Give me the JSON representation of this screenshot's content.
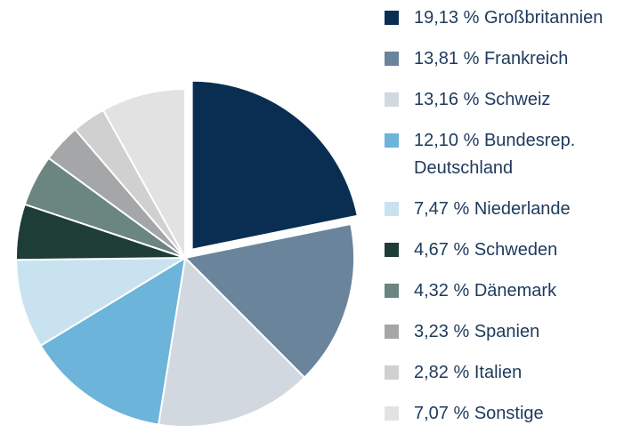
{
  "chart_data": {
    "type": "pie",
    "categories": [
      "Großbritannien",
      "Frankreich",
      "Schweiz",
      "Bundesrep. Deutschland",
      "Niederlande",
      "Schweden",
      "Dänemark",
      "Spanien",
      "Italien",
      "Sonstige"
    ],
    "values": [
      19.13,
      13.81,
      13.16,
      12.1,
      7.47,
      4.67,
      4.32,
      3.23,
      2.82,
      7.07
    ],
    "value_labels": [
      "19,13 %",
      "13,81 %",
      "13,16 %",
      "12,10 %",
      "7,47 %",
      "4,67 %",
      "4,32 %",
      "3,23 %",
      "2,82 %",
      "7,07 %"
    ],
    "colors": [
      "#0a2e52",
      "#6a849c",
      "#d2d8df",
      "#6cb4d9",
      "#c8e2f0",
      "#1d3d36",
      "#6b8580",
      "#a4a6a8",
      "#d0d0d0",
      "#e2e2e2"
    ],
    "exploded": [
      0
    ]
  }
}
